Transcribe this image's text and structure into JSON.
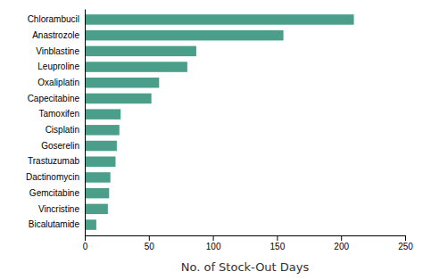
{
  "chart_data": {
    "type": "bar",
    "orientation": "horizontal",
    "categories": [
      "Chlorambucil",
      "Anastrozole",
      "Vinblastine",
      "Leuproline",
      "Oxaliplatin",
      "Capecitabine",
      "Tamoxifen",
      "Cisplatin",
      "Goserelin",
      "Trastuzumab",
      "Dactinomycin",
      "Gemcitabine",
      "Vincristine",
      "Bicalutamide"
    ],
    "values": [
      210,
      155,
      87,
      80,
      58,
      52,
      28,
      27,
      25,
      24,
      20,
      19,
      18,
      9
    ],
    "color": "#4a9e8a",
    "xlabel": "No. of Stock-Out Days",
    "xlim": [
      0,
      250
    ],
    "xticks": [
      0,
      50,
      100,
      150,
      200,
      250
    ],
    "grid": false
  }
}
